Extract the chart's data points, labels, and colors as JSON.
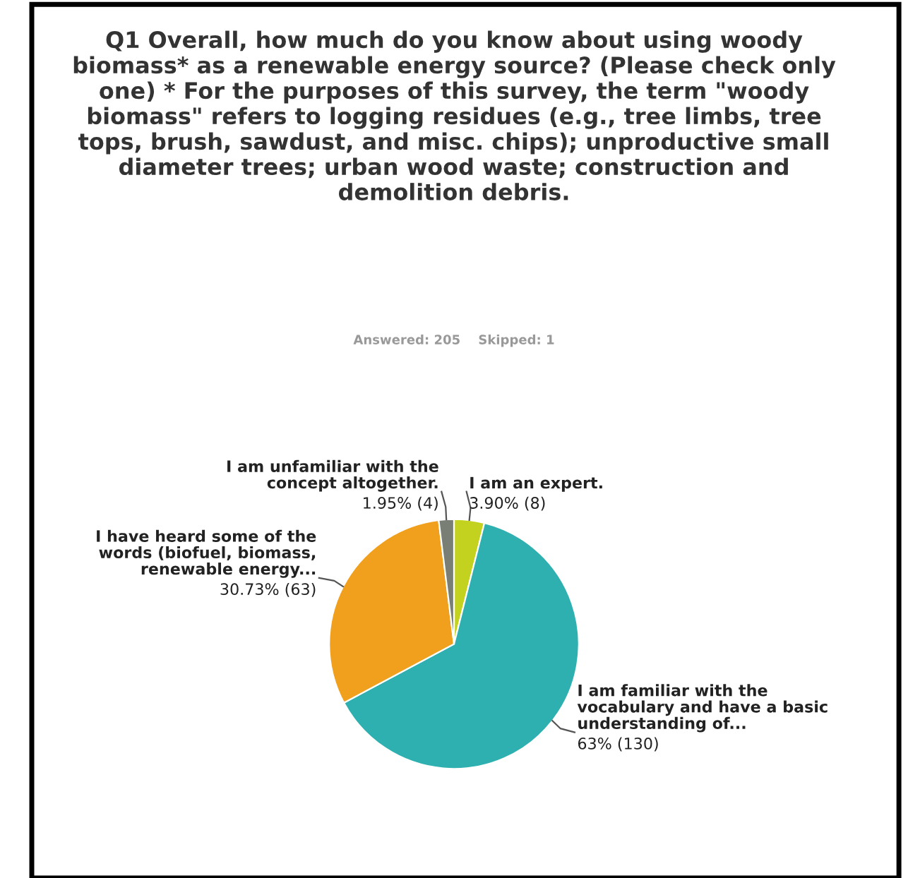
{
  "chart_data": {
    "type": "pie",
    "title": "Q1 Overall, how much do you know about using woody biomass* as a renewable energy source? (Please check only one) * For the purposes of this survey, the term \"woody biomass\" refers to logging residues (e.g., tree limbs, tree tops, brush, sawdust, and misc. chips); unproductive small diameter trees; urban wood waste; construction and demolition debris.",
    "subtitle": "Answered: 205    Skipped: 1",
    "categories": [
      "I am an expert.",
      "I am familiar with the vocabulary and have a basic understanding of...",
      "I have heard some of the words (biofuel, biomass, renewable energy...",
      "I am unfamiliar with the concept altogether."
    ],
    "values": [
      3.9,
      63,
      30.73,
      1.95
    ],
    "colors": [
      "#c3d21e",
      "#2fb0b0",
      "#f0a01c",
      "#7a7f76"
    ],
    "value_labels": [
      "3.90% (8)",
      "63% (130)",
      "30.73% (63)",
      "1.95% (4)"
    ]
  }
}
